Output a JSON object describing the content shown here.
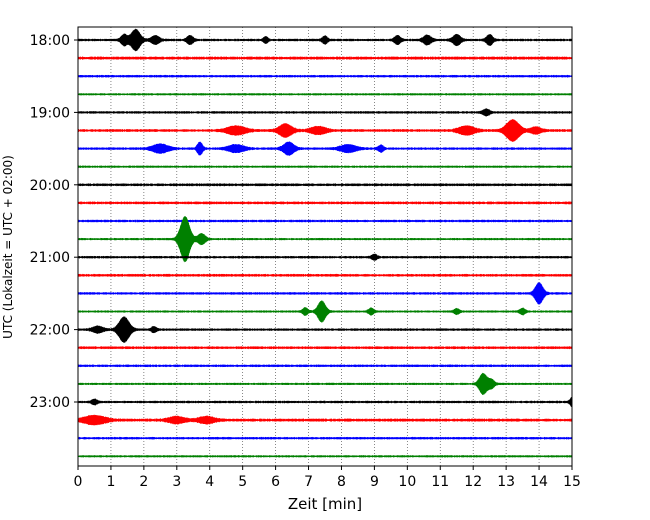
{
  "chart_data": {
    "type": "line",
    "xlabel": "Zeit  [min]",
    "ylabel": "UTC (Lokalzeit = UTC + 02:00)",
    "xlim": [
      0,
      15
    ],
    "xticks": [
      "0",
      "1",
      "2",
      "3",
      "4",
      "5",
      "6",
      "7",
      "8",
      "9",
      "10",
      "11",
      "12",
      "13",
      "14",
      "15"
    ],
    "grid": "vertical dotted",
    "trace_interval_minutes": 15,
    "trace_colors": [
      "#000000",
      "#ff0000",
      "#0000ff",
      "#008000"
    ],
    "y_tick_labels": [
      "18:00",
      "19:00",
      "20:00",
      "21:00",
      "22:00",
      "23:00"
    ],
    "traces": [
      {
        "start": "18:00",
        "color": "#000000",
        "noise": 0.9,
        "events": [
          {
            "t": 1.75,
            "a": 10,
            "d": 0.18
          },
          {
            "t": 1.4,
            "a": 5,
            "d": 0.12
          },
          {
            "t": 2.35,
            "a": 4,
            "d": 0.15
          },
          {
            "t": 3.4,
            "a": 4,
            "d": 0.12
          },
          {
            "t": 5.7,
            "a": 3,
            "d": 0.08
          },
          {
            "t": 7.5,
            "a": 3.5,
            "d": 0.1
          },
          {
            "t": 9.7,
            "a": 4,
            "d": 0.12
          },
          {
            "t": 10.6,
            "a": 4.5,
            "d": 0.15
          },
          {
            "t": 11.5,
            "a": 5,
            "d": 0.15
          },
          {
            "t": 12.5,
            "a": 5,
            "d": 0.12
          }
        ]
      },
      {
        "start": "18:15",
        "color": "#ff0000",
        "noise": 1.1,
        "events": []
      },
      {
        "start": "18:30",
        "color": "#0000ff",
        "noise": 0.9,
        "events": []
      },
      {
        "start": "18:45",
        "color": "#008000",
        "noise": 0.8,
        "events": []
      },
      {
        "start": "19:00",
        "color": "#000000",
        "noise": 0.9,
        "events": [
          {
            "t": 12.4,
            "a": 3,
            "d": 0.12
          }
        ]
      },
      {
        "start": "19:15",
        "color": "#ff0000",
        "noise": 1.0,
        "events": [
          {
            "t": 4.8,
            "a": 4,
            "d": 0.35
          },
          {
            "t": 6.3,
            "a": 6,
            "d": 0.25
          },
          {
            "t": 7.3,
            "a": 3.5,
            "d": 0.3
          },
          {
            "t": 11.8,
            "a": 4,
            "d": 0.3
          },
          {
            "t": 13.2,
            "a": 10,
            "d": 0.25
          },
          {
            "t": 13.9,
            "a": 3,
            "d": 0.2
          }
        ]
      },
      {
        "start": "19:30",
        "color": "#0000ff",
        "noise": 0.9,
        "events": [
          {
            "t": 2.5,
            "a": 4,
            "d": 0.3
          },
          {
            "t": 3.7,
            "a": 6,
            "d": 0.1
          },
          {
            "t": 4.8,
            "a": 3.5,
            "d": 0.3
          },
          {
            "t": 6.4,
            "a": 6,
            "d": 0.2
          },
          {
            "t": 8.2,
            "a": 3.5,
            "d": 0.3
          },
          {
            "t": 9.2,
            "a": 3,
            "d": 0.1
          }
        ]
      },
      {
        "start": "19:45",
        "color": "#008000",
        "noise": 0.8,
        "events": []
      },
      {
        "start": "20:00",
        "color": "#000000",
        "noise": 1.0,
        "events": []
      },
      {
        "start": "20:15",
        "color": "#ff0000",
        "noise": 1.0,
        "events": []
      },
      {
        "start": "20:30",
        "color": "#0000ff",
        "noise": 0.9,
        "events": []
      },
      {
        "start": "20:45",
        "color": "#008000",
        "noise": 0.8,
        "events": [
          {
            "t": 3.25,
            "a": 22,
            "d": 0.18
          },
          {
            "t": 3.75,
            "a": 5,
            "d": 0.15
          }
        ]
      },
      {
        "start": "21:00",
        "color": "#000000",
        "noise": 0.9,
        "events": [
          {
            "t": 9.0,
            "a": 2.5,
            "d": 0.1
          }
        ]
      },
      {
        "start": "21:15",
        "color": "#ff0000",
        "noise": 1.0,
        "events": []
      },
      {
        "start": "21:30",
        "color": "#0000ff",
        "noise": 0.9,
        "events": [
          {
            "t": 14.0,
            "a": 10,
            "d": 0.15
          }
        ]
      },
      {
        "start": "21:45",
        "color": "#008000",
        "noise": 0.8,
        "events": [
          {
            "t": 6.9,
            "a": 3.5,
            "d": 0.1
          },
          {
            "t": 7.4,
            "a": 10,
            "d": 0.15
          },
          {
            "t": 8.9,
            "a": 3,
            "d": 0.1
          },
          {
            "t": 11.5,
            "a": 2.5,
            "d": 0.1
          },
          {
            "t": 13.5,
            "a": 3,
            "d": 0.1
          }
        ]
      },
      {
        "start": "22:00",
        "color": "#000000",
        "noise": 0.9,
        "events": [
          {
            "t": 0.6,
            "a": 3,
            "d": 0.2
          },
          {
            "t": 1.4,
            "a": 12,
            "d": 0.2
          },
          {
            "t": 2.3,
            "a": 2.5,
            "d": 0.1
          }
        ]
      },
      {
        "start": "22:15",
        "color": "#ff0000",
        "noise": 1.0,
        "events": []
      },
      {
        "start": "22:30",
        "color": "#0000ff",
        "noise": 0.9,
        "events": []
      },
      {
        "start": "22:45",
        "color": "#008000",
        "noise": 0.8,
        "events": [
          {
            "t": 12.3,
            "a": 10,
            "d": 0.15
          },
          {
            "t": 12.55,
            "a": 4,
            "d": 0.12
          }
        ]
      },
      {
        "start": "23:00",
        "color": "#000000",
        "noise": 0.9,
        "events": [
          {
            "t": 0.5,
            "a": 2.5,
            "d": 0.1
          },
          {
            "t": 15.0,
            "a": 4,
            "d": 0.08
          }
        ]
      },
      {
        "start": "23:15",
        "color": "#ff0000",
        "noise": 1.1,
        "events": [
          {
            "t": 0.5,
            "a": 4,
            "d": 0.4
          },
          {
            "t": 3.0,
            "a": 3,
            "d": 0.3
          },
          {
            "t": 3.9,
            "a": 3,
            "d": 0.3
          }
        ]
      },
      {
        "start": "23:30",
        "color": "#0000ff",
        "noise": 0.9,
        "events": []
      },
      {
        "start": "23:45",
        "color": "#008000",
        "noise": 0.8,
        "events": []
      }
    ]
  }
}
